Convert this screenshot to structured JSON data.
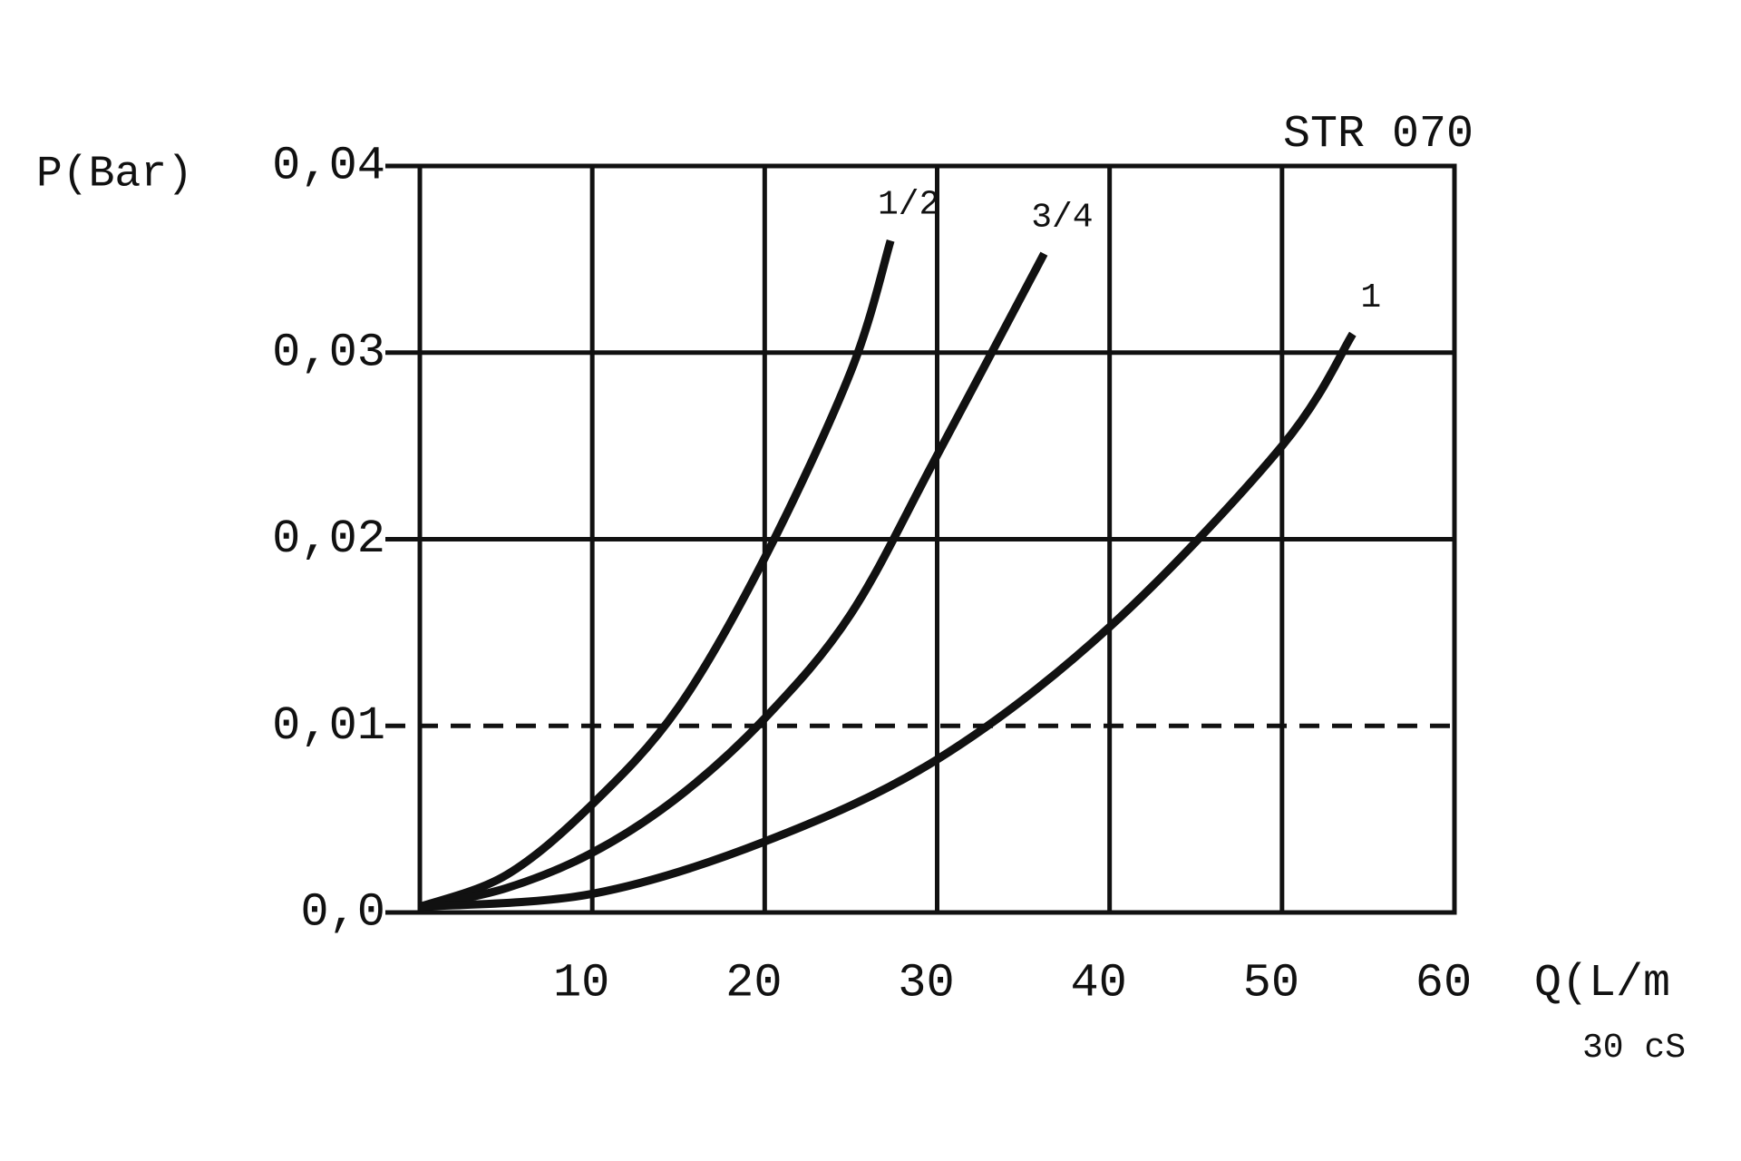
{
  "chart_data": {
    "type": "line",
    "title": "STR 070",
    "y_label": "P(Bar)",
    "x_label": "Q(L/m",
    "note": "30 cS",
    "xlim": [
      0,
      60
    ],
    "ylim": [
      0,
      0.04
    ],
    "xticks": [
      10,
      20,
      30,
      40,
      50,
      60
    ],
    "yticks": [
      {
        "value": 0,
        "label": "0,0"
      },
      {
        "value": 0.01,
        "label": "0,01",
        "style": "dashed"
      },
      {
        "value": 0.02,
        "label": "0,02"
      },
      {
        "value": 0.03,
        "label": "0,03"
      },
      {
        "value": 0.04,
        "label": "0,04"
      }
    ],
    "grid": true,
    "series": [
      {
        "name": "1/2",
        "color": "#111111",
        "x": [
          0,
          5,
          10,
          15,
          20,
          25,
          27.3
        ],
        "values": [
          0.0003,
          0.002,
          0.0058,
          0.011,
          0.019,
          0.029,
          0.036
        ]
      },
      {
        "name": "3/4",
        "color": "#111111",
        "x": [
          0,
          5,
          10,
          15,
          20,
          25,
          30,
          36.2
        ],
        "values": [
          0.0003,
          0.0013,
          0.0032,
          0.0062,
          0.0104,
          0.016,
          0.0245,
          0.0353
        ]
      },
      {
        "name": "1",
        "color": "#111111",
        "x": [
          0,
          10,
          20,
          30,
          40,
          50,
          54.1
        ],
        "values": [
          0.0003,
          0.001,
          0.0038,
          0.0082,
          0.0153,
          0.025,
          0.031
        ]
      }
    ]
  }
}
